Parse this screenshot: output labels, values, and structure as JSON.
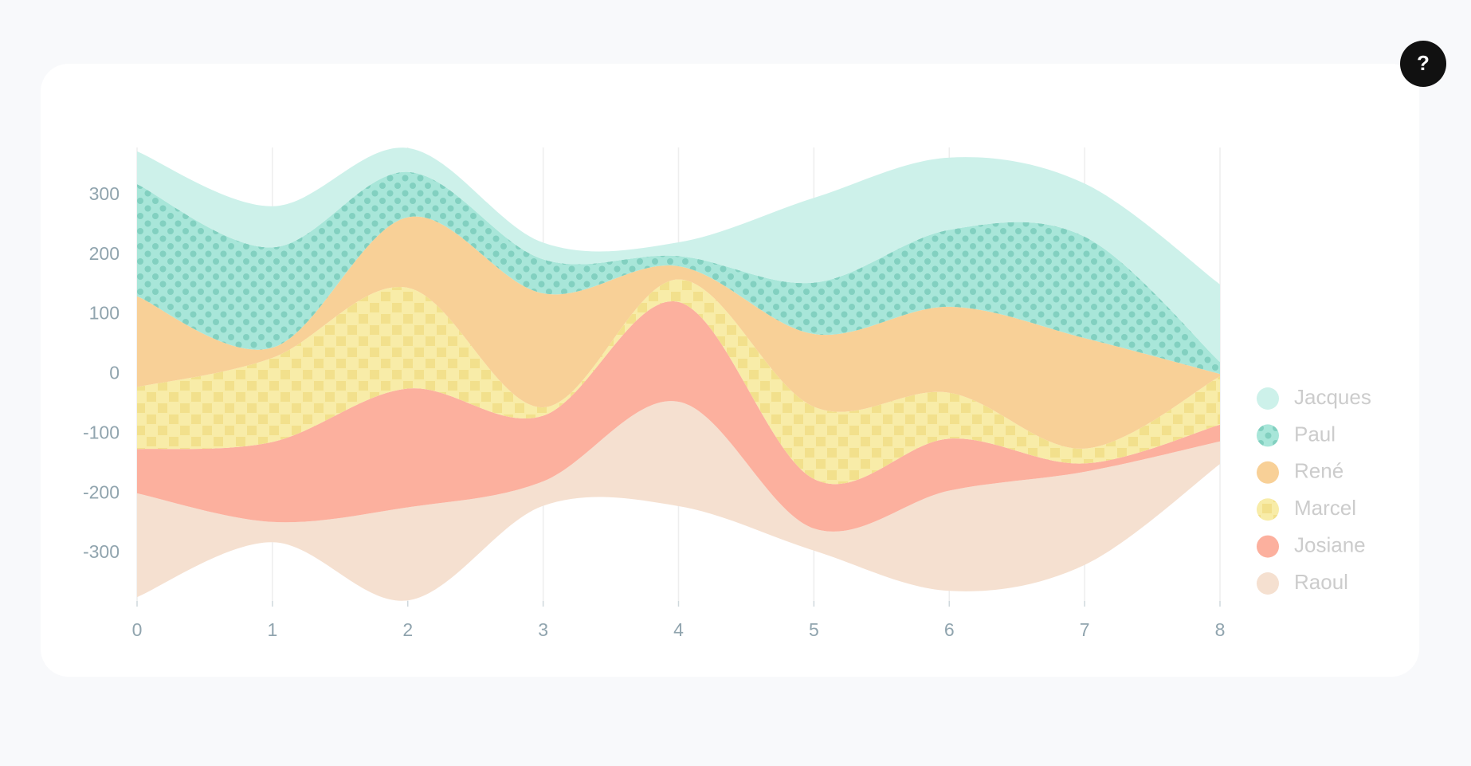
{
  "chart_data": {
    "type": "stream",
    "x": [
      0,
      1,
      2,
      3,
      4,
      5,
      6,
      7,
      8
    ],
    "xlim": [
      0,
      8
    ],
    "xticks": [
      0,
      1,
      2,
      3,
      4,
      5,
      6,
      7,
      8
    ],
    "ylim": [
      -380,
      380
    ],
    "yticks": [
      -300,
      -200,
      -100,
      0,
      100,
      200,
      300
    ],
    "grid": true,
    "legend": "right",
    "series": [
      {
        "name": "Jacques",
        "color": "#cdf1ea",
        "values": [
          55,
          69,
          40,
          28,
          23,
          142,
          121,
          89,
          130
        ]
      },
      {
        "name": "Paul",
        "color": "#a8e6d9",
        "pattern": "dots",
        "values": [
          188,
          168,
          76,
          57,
          17,
          86,
          129,
          170,
          20
        ]
      },
      {
        "name": "René",
        "color": "#f8d097",
        "values": [
          152,
          17,
          118,
          191,
          22,
          122,
          144,
          185,
          4
        ]
      },
      {
        "name": "Marcel",
        "color": "#f8eca8",
        "pattern": "squares",
        "values": [
          104,
          141,
          169,
          14,
          38,
          121,
          77,
          25,
          81
        ]
      },
      {
        "name": "Josiane",
        "color": "#fcb09e",
        "values": [
          74,
          134,
          199,
          110,
          167,
          83,
          87,
          14,
          28
        ]
      },
      {
        "name": "Raoul",
        "color": "#f5e0d0",
        "values": [
          174,
          34,
          156,
          41,
          175,
          37,
          168,
          156,
          38
        ]
      }
    ]
  }
}
